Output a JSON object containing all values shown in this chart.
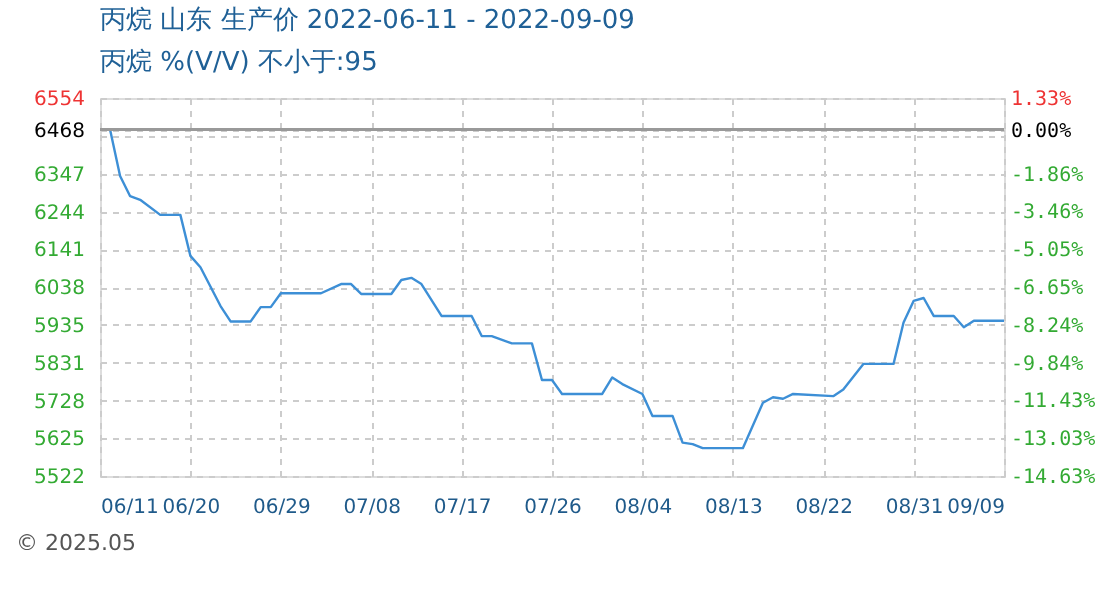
{
  "chart_data": {
    "type": "line",
    "title": "丙烷 山东 生产价 2022-06-11 - 2022-09-09",
    "subtitle": "丙烷 %(V/V)  不小于:95",
    "annotations": [
      "© 2025.05"
    ],
    "x": [
      "2022-06-11",
      "2022-06-12",
      "2022-06-13",
      "2022-06-14",
      "2022-06-15",
      "2022-06-17",
      "2022-06-19",
      "2022-06-20",
      "2022-06-21",
      "2022-06-23",
      "2022-06-24",
      "2022-06-26",
      "2022-06-27",
      "2022-06-28",
      "2022-06-29",
      "2022-07-03",
      "2022-07-05",
      "2022-07-06",
      "2022-07-07",
      "2022-07-10",
      "2022-07-11",
      "2022-07-12",
      "2022-07-13",
      "2022-07-15",
      "2022-07-18",
      "2022-07-19",
      "2022-07-20",
      "2022-07-22",
      "2022-07-24",
      "2022-07-25",
      "2022-07-26",
      "2022-07-27",
      "2022-07-31",
      "2022-08-01",
      "2022-08-02",
      "2022-08-04",
      "2022-08-05",
      "2022-08-07",
      "2022-08-08",
      "2022-08-09",
      "2022-08-10",
      "2022-08-14",
      "2022-08-16",
      "2022-08-17",
      "2022-08-18",
      "2022-08-19",
      "2022-08-23",
      "2022-08-24",
      "2022-08-26",
      "2022-08-29",
      "2022-08-30",
      "2022-08-31",
      "2022-09-01",
      "2022-09-02",
      "2022-09-04",
      "2022-09-05",
      "2022-09-06",
      "2022-09-09"
    ],
    "series": [
      {
        "color": "#3d8fd6",
        "values": [
          6468,
          6468,
          6341,
          6286,
          6276,
          6235,
          6235,
          6123,
          6092,
          5986,
          5944,
          5944,
          5983,
          5983,
          6021,
          6021,
          6046,
          6046,
          6019,
          6019,
          6057,
          6063,
          6046,
          5959,
          5959,
          5904,
          5904,
          5884,
          5884,
          5784,
          5784,
          5746,
          5746,
          5791,
          5773,
          5746,
          5686,
          5686,
          5613,
          5609,
          5598,
          5598,
          5722,
          5737,
          5733,
          5746,
          5740,
          5758,
          5828,
          5828,
          5941,
          6000,
          6008,
          5959,
          5959,
          5928,
          5946,
          5946
        ]
      }
    ],
    "xlim": [
      "2022-06-11",
      "2022-09-09"
    ],
    "xticks": [
      {
        "value": "2022-06-11",
        "label": "06/11"
      },
      {
        "value": "2022-06-20",
        "label": "06/20"
      },
      {
        "value": "2022-06-29",
        "label": "06/29"
      },
      {
        "value": "2022-07-08",
        "label": "07/08"
      },
      {
        "value": "2022-07-17",
        "label": "07/17"
      },
      {
        "value": "2022-07-26",
        "label": "07/26"
      },
      {
        "value": "2022-08-04",
        "label": "08/04"
      },
      {
        "value": "2022-08-13",
        "label": "08/13"
      },
      {
        "value": "2022-08-22",
        "label": "08/22"
      },
      {
        "value": "2022-08-31",
        "label": "08/31"
      },
      {
        "value": "2022-09-09",
        "label": "09/09"
      }
    ],
    "ylim": [
      5522,
      6554
    ],
    "yticks": [
      5522,
      5625,
      5728,
      5831,
      5935,
      6038,
      6141,
      6244,
      6347,
      {
        "value": 6451,
        "label": null
      },
      6468,
      6554
    ],
    "y2lim": [
      -14.63,
      1.33
    ],
    "y2ticks": [
      {
        "value": -14.63,
        "label": "-14.63%"
      },
      {
        "value": -13.03,
        "label": "-13.03%"
      },
      {
        "value": -11.43,
        "label": "-11.43%"
      },
      {
        "value": -9.84,
        "label": "-9.84%"
      },
      {
        "value": -8.24,
        "label": "-8.24%"
      },
      {
        "value": -6.65,
        "label": "-6.65%"
      },
      {
        "value": -5.05,
        "label": "-5.05%"
      },
      {
        "value": -3.46,
        "label": "-3.46%"
      },
      {
        "value": -1.86,
        "label": "-1.86%"
      },
      {
        "value": 0,
        "label": "0.00%"
      },
      {
        "value": 1.33,
        "label": "1.33%"
      }
    ],
    "ref_lines": [
      {
        "axis": "y2",
        "value": 0,
        "color": "#999999"
      }
    ],
    "grid": true,
    "marker": "none",
    "line_style": "solid"
  }
}
